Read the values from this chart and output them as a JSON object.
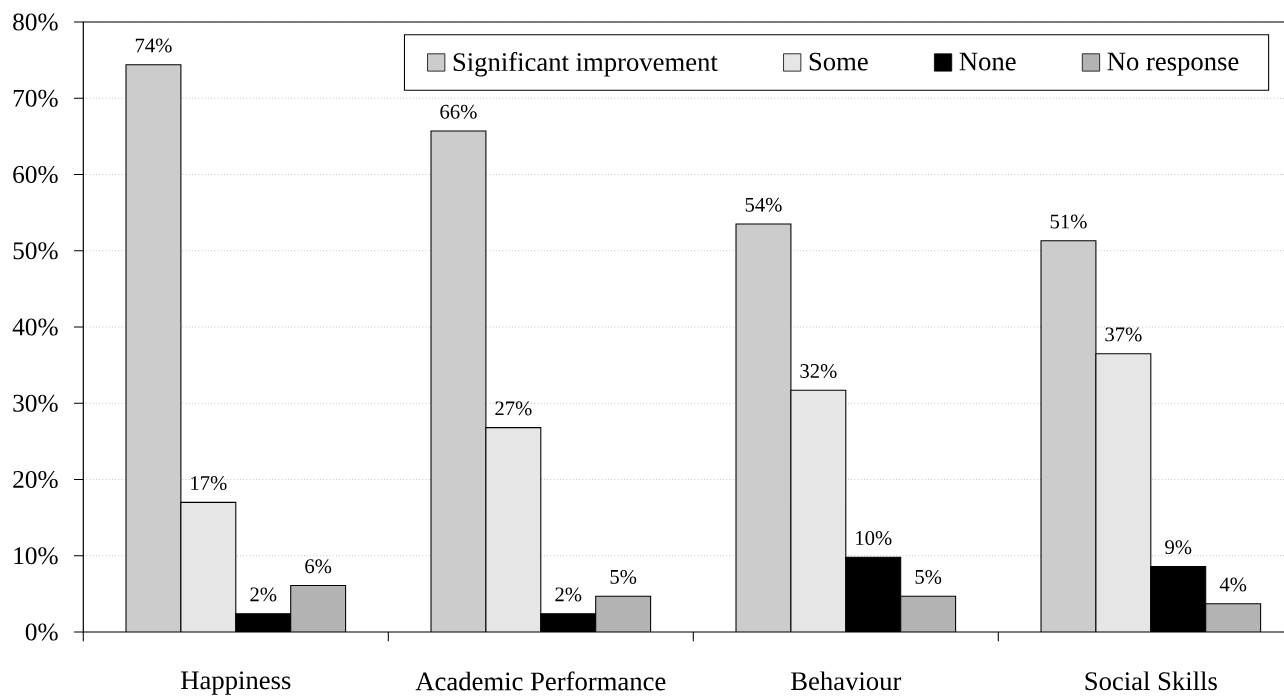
{
  "chart_data": {
    "type": "bar",
    "categories": [
      "Happiness",
      "Academic Performance",
      "Behaviour",
      "Social Skills"
    ],
    "series": [
      {
        "name": "Significant improvement",
        "color": "#cccccc",
        "values": [
          74.4,
          65.7,
          53.5,
          51.3
        ],
        "value_labels": [
          "74%",
          "66%",
          "54%",
          "51%"
        ]
      },
      {
        "name": "Some",
        "color": "#e6e6e6",
        "values": [
          17.0,
          26.8,
          31.7,
          36.5
        ],
        "value_labels": [
          "17%",
          "27%",
          "32%",
          "37%"
        ]
      },
      {
        "name": "None",
        "color": "#000000",
        "values": [
          2.4,
          2.4,
          9.8,
          8.6
        ],
        "value_labels": [
          "2%",
          "2%",
          "10%",
          "9%"
        ]
      },
      {
        "name": "No response",
        "color": "#b3b3b3",
        "values": [
          6.1,
          4.7,
          4.7,
          3.7
        ],
        "value_labels": [
          "6%",
          "5%",
          "5%",
          "4%"
        ]
      }
    ],
    "ylim": [
      0,
      80
    ],
    "yticks": [
      {
        "value": 0,
        "label": "0%"
      },
      {
        "value": 10,
        "label": "10%"
      },
      {
        "value": 20,
        "label": "20%"
      },
      {
        "value": 30,
        "label": "30%"
      },
      {
        "value": 40,
        "label": "40%"
      },
      {
        "value": 50,
        "label": "50%"
      },
      {
        "value": 60,
        "label": "60%"
      },
      {
        "value": 70,
        "label": "70%"
      },
      {
        "value": 80,
        "label": "80%"
      }
    ],
    "grid": "y",
    "legend": "top right"
  }
}
